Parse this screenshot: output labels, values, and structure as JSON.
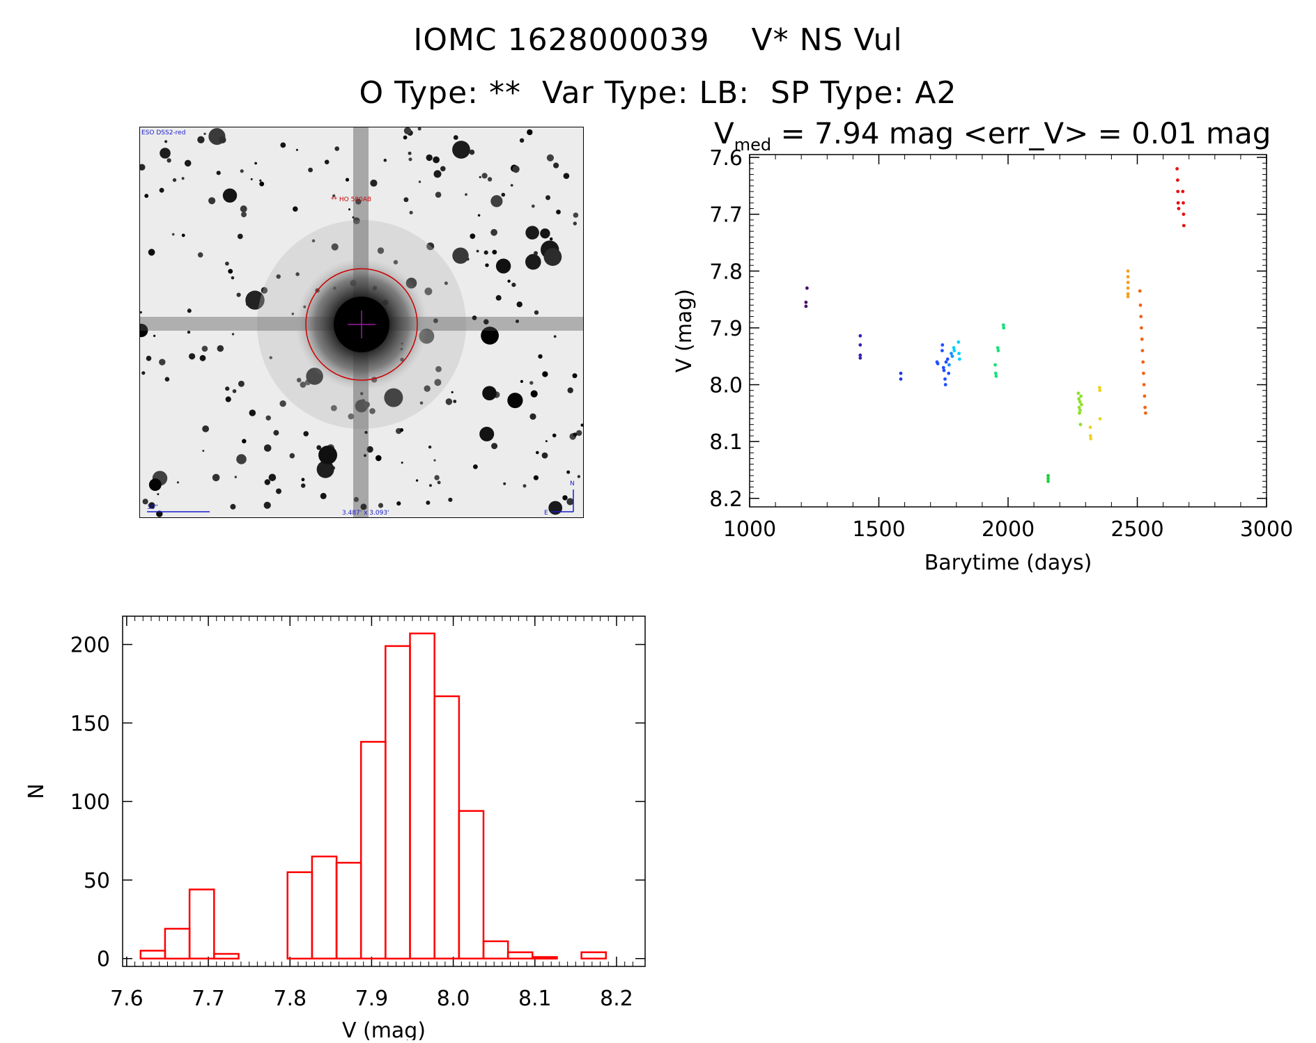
{
  "header": {
    "title_line1": "IOMC 1628000039    V* NS Vul",
    "title_line2": "O Type: **  Var Type: LB:  SP Type: A2"
  },
  "sky_image": {
    "survey_label": "ESO DSS2-red",
    "object_label": "** HO 580AB",
    "scale_label": "30\"",
    "size_label": "3.487' x 3.093'",
    "north_label": "N",
    "east_label": "E"
  },
  "chart_data": [
    {
      "type": "scatter",
      "title_main": "V",
      "title_sub": "med",
      "title_rest": " = 7.94 mag <err_V> = 0.01 mag",
      "xlabel": "Barytime (days)",
      "ylabel": "V (mag)",
      "xlim": [
        1000,
        3000
      ],
      "ylim": [
        8.215,
        7.595
      ],
      "y_inverted": true,
      "xticks": [
        1000,
        1500,
        2000,
        2500,
        3000
      ],
      "yticks": [
        7.6,
        7.7,
        7.8,
        7.9,
        8.0,
        8.1,
        8.2
      ],
      "ytick_labels": [
        "7.6",
        "7.7",
        "7.8",
        "7.9",
        "8.0",
        "8.1",
        "8.2"
      ],
      "groups": [
        {
          "color": "#4b0a6e",
          "points": [
            [
              1222,
              7.83
            ],
            [
              1218,
              7.855
            ],
            [
              1218,
              7.862
            ]
          ]
        },
        {
          "color": "#3a1fb0",
          "points": [
            [
              1428,
              7.914
            ],
            [
              1428,
              7.93
            ],
            [
              1428,
              7.948
            ],
            [
              1428,
              7.953
            ]
          ]
        },
        {
          "color": "#2238d8",
          "points": [
            [
              1585,
              7.98
            ],
            [
              1585,
              7.99
            ]
          ]
        },
        {
          "color": "#1f4fff",
          "points": [
            [
              1725,
              7.96
            ],
            [
              1728,
              7.963
            ],
            [
              1745,
              7.94
            ],
            [
              1746,
              7.93
            ],
            [
              1750,
              7.97
            ],
            [
              1752,
              7.975
            ],
            [
              1756,
              7.99
            ],
            [
              1758,
              8.0
            ],
            [
              1760,
              7.96
            ],
            [
              1766,
              7.955
            ],
            [
              1770,
              7.98
            ]
          ]
        },
        {
          "color": "#1a90ff",
          "points": [
            [
              1772,
              7.965
            ],
            [
              1780,
              7.945
            ],
            [
              1784,
              7.95
            ]
          ]
        },
        {
          "color": "#00d0ff",
          "points": [
            [
              1790,
              7.935
            ],
            [
              1792,
              7.94
            ],
            [
              1808,
              7.925
            ],
            [
              1810,
              7.945
            ],
            [
              1812,
              7.955
            ]
          ]
        },
        {
          "color": "#19e07a",
          "points": [
            [
              1950,
              7.965
            ],
            [
              1952,
              7.98
            ],
            [
              1954,
              7.985
            ],
            [
              1960,
              7.935
            ],
            [
              1962,
              7.94
            ],
            [
              1982,
              7.895
            ],
            [
              1983,
              7.9
            ]
          ]
        },
        {
          "color": "#1ccf3a",
          "points": [
            [
              2155,
              8.16
            ],
            [
              2155,
              8.165
            ],
            [
              2155,
              8.17
            ]
          ]
        },
        {
          "color": "#8ee02a",
          "points": [
            [
              2272,
              8.015
            ],
            [
              2274,
              8.025
            ],
            [
              2275,
              8.04
            ],
            [
              2276,
              8.05
            ],
            [
              2278,
              8.03
            ],
            [
              2279,
              8.045
            ],
            [
              2280,
              8.07
            ],
            [
              2282,
              8.02
            ],
            [
              2284,
              8.035
            ]
          ]
        },
        {
          "color": "#f0d21e",
          "points": [
            [
              2318,
              8.075
            ],
            [
              2319,
              8.09
            ],
            [
              2320,
              8.095
            ],
            [
              2354,
              8.005
            ],
            [
              2355,
              8.01
            ],
            [
              2356,
              8.06
            ]
          ]
        },
        {
          "color": "#f5a020",
          "points": [
            [
              2464,
              7.8
            ],
            [
              2464,
              7.81
            ],
            [
              2464,
              7.82
            ],
            [
              2464,
              7.83
            ],
            [
              2464,
              7.84
            ],
            [
              2464,
              7.845
            ]
          ]
        },
        {
          "color": "#f06418",
          "points": [
            [
              2510,
              7.835
            ],
            [
              2512,
              7.86
            ],
            [
              2514,
              7.88
            ],
            [
              2516,
              7.9
            ],
            [
              2518,
              7.92
            ],
            [
              2520,
              7.94
            ],
            [
              2522,
              7.96
            ],
            [
              2524,
              7.98
            ],
            [
              2526,
              8.0
            ],
            [
              2528,
              8.02
            ],
            [
              2530,
              8.04
            ],
            [
              2532,
              8.05
            ]
          ]
        },
        {
          "color": "#e81010",
          "points": [
            [
              2654,
              7.62
            ],
            [
              2656,
              7.64
            ],
            [
              2657,
              7.66
            ],
            [
              2658,
              7.68
            ],
            [
              2660,
              7.69
            ],
            [
              2676,
              7.66
            ],
            [
              2678,
              7.68
            ],
            [
              2679,
              7.7
            ],
            [
              2680,
              7.72
            ]
          ]
        }
      ]
    },
    {
      "type": "bar",
      "subtype": "histogram",
      "xlabel": "V (mag)",
      "ylabel": "N",
      "xlim": [
        7.595,
        8.235
      ],
      "ylim": [
        -5,
        218
      ],
      "xticks": [
        7.6,
        7.7,
        7.8,
        7.9,
        8.0,
        8.1,
        8.2
      ],
      "xtick_labels": [
        "7.6",
        "7.7",
        "7.8",
        "7.9",
        "8.0",
        "8.1",
        "8.2"
      ],
      "yticks": [
        0,
        50,
        100,
        150,
        200
      ],
      "ytick_labels": [
        "0",
        "50",
        "100",
        "150",
        "200"
      ],
      "bin_width": 0.03,
      "bin_left_edges": [
        7.617,
        7.647,
        7.677,
        7.707,
        7.737,
        7.767,
        7.797,
        7.827,
        7.857,
        7.887,
        7.917,
        7.947,
        7.977,
        8.007,
        8.037,
        8.067,
        8.097,
        8.127,
        8.157
      ],
      "counts": [
        5,
        19,
        44,
        3,
        0,
        0,
        55,
        65,
        61,
        138,
        199,
        207,
        167,
        94,
        11,
        4,
        1,
        0,
        4
      ],
      "color": "#ff0000"
    }
  ]
}
